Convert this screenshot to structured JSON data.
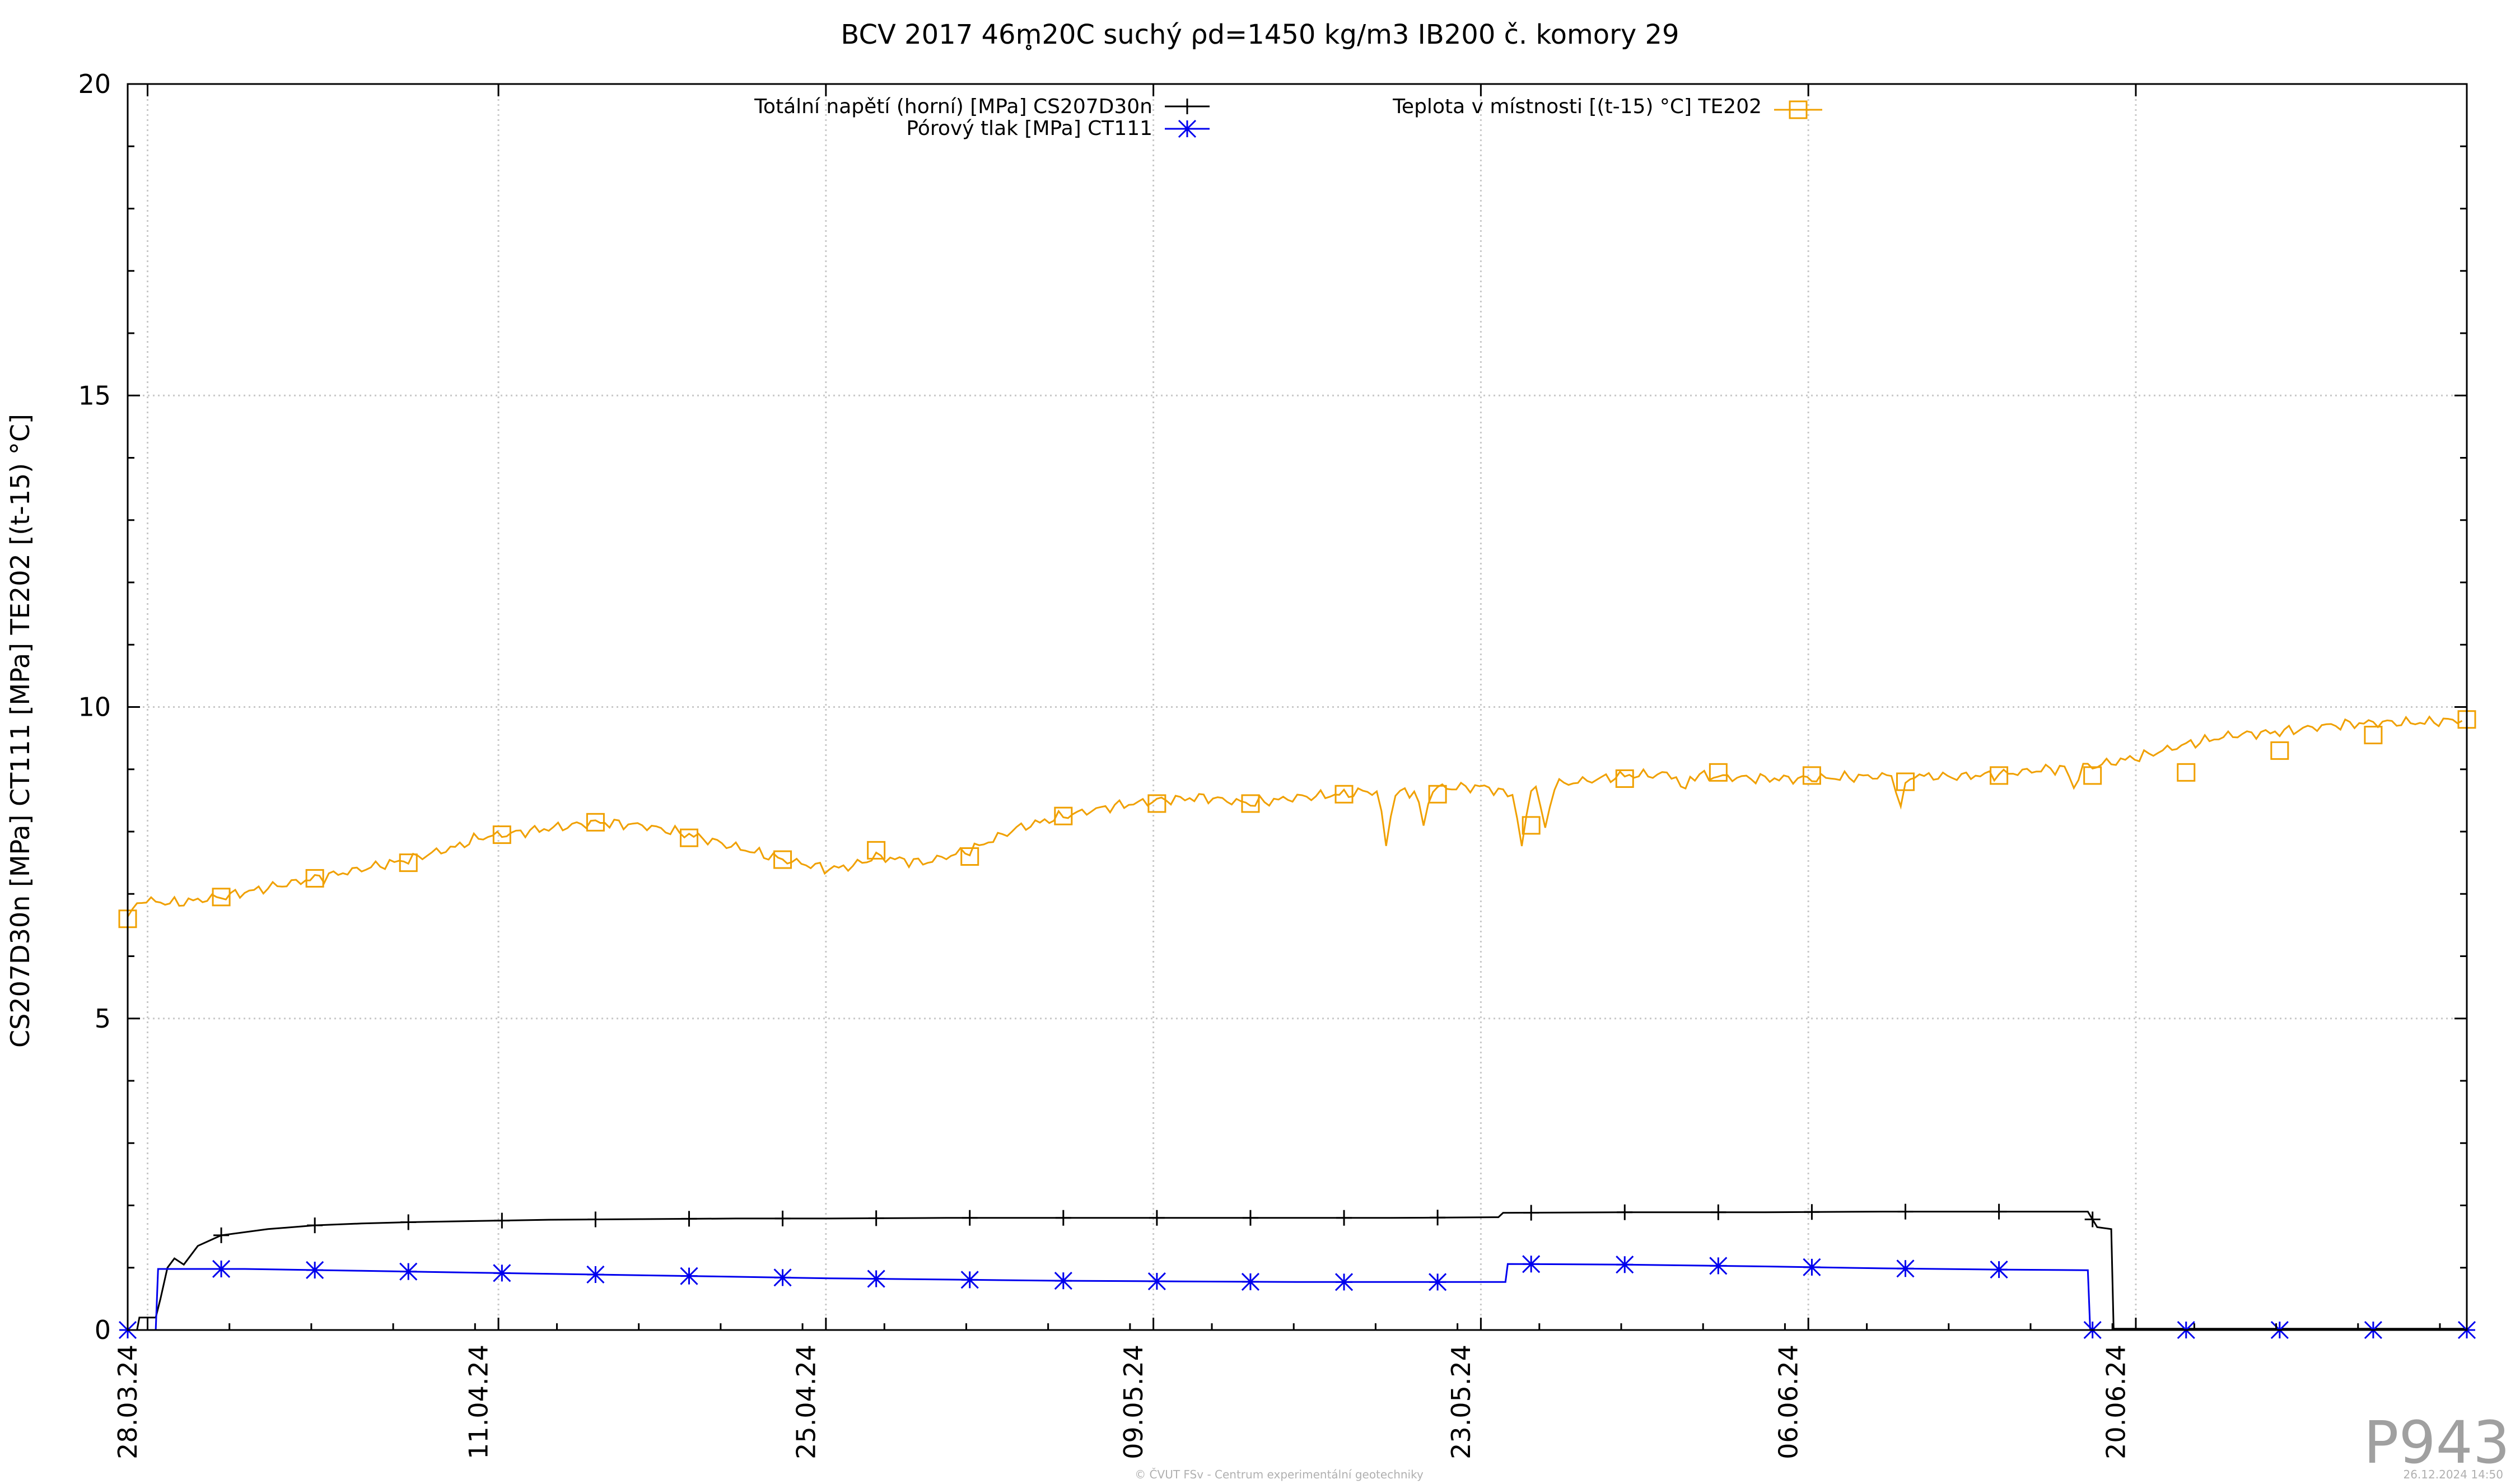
{
  "title": "BCV 2017 46m̥20C suchý ρd=1450 kg/m3 IB200 č. komory 29",
  "ylabel": "CS207D30n [MPa] CT111 [MPa] TE202 [(t-15) °C]",
  "watermark": "P943",
  "footer_left": "© ČVUT FSv - Centrum experimentální geotechniky",
  "footer_right": "26.12.2024 14:50",
  "legend": {
    "s1": "Totální napětí (horní) [MPa] CS207D30n",
    "s2": "Pórový tlak [MPa] CT111",
    "s3": "Teplota v místnosti [(t-15) °C] TE202"
  },
  "colors": {
    "black": "#000000",
    "blue": "#0000ee",
    "orange": "#f0a000"
  },
  "chart_data": {
    "type": "line",
    "x_unit": "days since 28.03.24",
    "xlim": [
      0,
      100
    ],
    "ylim": [
      0,
      20
    ],
    "grid": true,
    "legend_position": "top",
    "y_ticks": [
      0,
      5,
      10,
      15,
      20
    ],
    "x_ticks": [
      {
        "x": 0,
        "label": "28.03.24"
      },
      {
        "x": 15,
        "label": "11.04.24"
      },
      {
        "x": 29,
        "label": "25.04.24"
      },
      {
        "x": 43,
        "label": "09.05.24"
      },
      {
        "x": 57,
        "label": "23.05.24"
      },
      {
        "x": 71,
        "label": "06.06.24"
      },
      {
        "x": 85,
        "label": "20.06.24"
      }
    ],
    "series": [
      {
        "name": "Totální napětí (horní) [MPa] CS207D30n",
        "color": "#000000",
        "marker": "plus",
        "points": [
          [
            0,
            0
          ],
          [
            0.4,
            0
          ],
          [
            0.5,
            0.2
          ],
          [
            1.2,
            0.2
          ],
          [
            1.4,
            0.5
          ],
          [
            1.7,
            1.0
          ],
          [
            2.0,
            1.15
          ],
          [
            2.4,
            1.05
          ],
          [
            3.0,
            1.35
          ],
          [
            4,
            1.52
          ],
          [
            6,
            1.62
          ],
          [
            8,
            1.68
          ],
          [
            10,
            1.71
          ],
          [
            12,
            1.73
          ],
          [
            15,
            1.75
          ],
          [
            18,
            1.77
          ],
          [
            22,
            1.78
          ],
          [
            26,
            1.79
          ],
          [
            30,
            1.79
          ],
          [
            35,
            1.8
          ],
          [
            40,
            1.8
          ],
          [
            45,
            1.8
          ],
          [
            50,
            1.8
          ],
          [
            54,
            1.8
          ],
          [
            58.6,
            1.81
          ],
          [
            58.8,
            1.88
          ],
          [
            64,
            1.89
          ],
          [
            70,
            1.89
          ],
          [
            75,
            1.9
          ],
          [
            80,
            1.9
          ],
          [
            83.8,
            1.9
          ],
          [
            84.2,
            1.65
          ],
          [
            84.8,
            1.62
          ],
          [
            84.9,
            0.02
          ],
          [
            90,
            0.02
          ],
          [
            100,
            0.02
          ]
        ],
        "markers_x": [
          4,
          8,
          12,
          16,
          20,
          24,
          28,
          32,
          36,
          40,
          44,
          48,
          52,
          56,
          60,
          64,
          68,
          72,
          76,
          80,
          84
        ]
      },
      {
        "name": "Pórový tlak [MPa] CT111",
        "color": "#0000ee",
        "marker": "star",
        "points": [
          [
            0,
            0
          ],
          [
            1.2,
            0
          ],
          [
            1.3,
            0.98
          ],
          [
            5,
            0.98
          ],
          [
            10,
            0.95
          ],
          [
            15,
            0.92
          ],
          [
            20,
            0.89
          ],
          [
            25,
            0.86
          ],
          [
            30,
            0.83
          ],
          [
            35,
            0.81
          ],
          [
            40,
            0.79
          ],
          [
            45,
            0.78
          ],
          [
            50,
            0.77
          ],
          [
            58.9,
            0.77
          ],
          [
            59,
            1.06
          ],
          [
            64,
            1.05
          ],
          [
            70,
            1.02
          ],
          [
            75,
            0.99
          ],
          [
            80,
            0.97
          ],
          [
            83.8,
            0.96
          ],
          [
            83.9,
            0
          ],
          [
            90,
            0
          ],
          [
            100,
            0
          ]
        ],
        "markers_x": [
          0,
          4,
          8,
          12,
          16,
          20,
          24,
          28,
          32,
          36,
          40,
          44,
          48,
          52,
          56,
          60,
          64,
          68,
          72,
          76,
          80,
          84,
          88,
          92,
          96,
          100
        ]
      },
      {
        "name": "Teplota v místnosti [(t-15) °C] TE202",
        "color": "#f0a000",
        "marker": "square",
        "points": [
          [
            0,
            6.6
          ],
          [
            0.5,
            6.9
          ],
          [
            2,
            6.85
          ],
          [
            4,
            6.95
          ],
          [
            6,
            7.1
          ],
          [
            8,
            7.25
          ],
          [
            10,
            7.4
          ],
          [
            12,
            7.55
          ],
          [
            14,
            7.75
          ],
          [
            15,
            7.9
          ],
          [
            16,
            7.95
          ],
          [
            18,
            8.05
          ],
          [
            20,
            8.15
          ],
          [
            22,
            8.1
          ],
          [
            24,
            7.95
          ],
          [
            26,
            7.75
          ],
          [
            28,
            7.55
          ],
          [
            30,
            7.4
          ],
          [
            31,
            7.45
          ],
          [
            32,
            7.6
          ],
          [
            34,
            7.5
          ],
          [
            36,
            7.7
          ],
          [
            38,
            8.05
          ],
          [
            40,
            8.25
          ],
          [
            42,
            8.4
          ],
          [
            44,
            8.5
          ],
          [
            46,
            8.55
          ],
          [
            48,
            8.45
          ],
          [
            50,
            8.55
          ],
          [
            52,
            8.6
          ],
          [
            53,
            8.65
          ],
          [
            54,
            8.6
          ],
          [
            56,
            8.7
          ],
          [
            58,
            8.72
          ],
          [
            59,
            8.6
          ],
          [
            60,
            8.7
          ],
          [
            62,
            8.8
          ],
          [
            64,
            8.9
          ],
          [
            66,
            8.92
          ],
          [
            68,
            8.88
          ],
          [
            70,
            8.85
          ],
          [
            72,
            8.85
          ],
          [
            74,
            8.88
          ],
          [
            76,
            8.9
          ],
          [
            78,
            8.88
          ],
          [
            80,
            8.92
          ],
          [
            82,
            9.0
          ],
          [
            84,
            9.05
          ],
          [
            86,
            9.2
          ],
          [
            88,
            9.4
          ],
          [
            90,
            9.55
          ],
          [
            92,
            9.6
          ],
          [
            94,
            9.7
          ],
          [
            96,
            9.75
          ],
          [
            98,
            9.75
          ],
          [
            100,
            9.8
          ]
        ],
        "dips": [
          [
            53.8,
            7.8
          ],
          [
            55.4,
            8.1
          ],
          [
            59.6,
            7.7
          ],
          [
            60.6,
            8.0
          ],
          [
            66.5,
            8.6
          ],
          [
            75.8,
            8.4
          ],
          [
            83.2,
            8.7
          ]
        ],
        "markers": [
          [
            0,
            6.6
          ],
          [
            4,
            6.95
          ],
          [
            8,
            7.25
          ],
          [
            12,
            7.5
          ],
          [
            16,
            7.95
          ],
          [
            20,
            8.15
          ],
          [
            24,
            7.9
          ],
          [
            28,
            7.55
          ],
          [
            32,
            7.7
          ],
          [
            36,
            7.6
          ],
          [
            40,
            8.25
          ],
          [
            44,
            8.45
          ],
          [
            48,
            8.45
          ],
          [
            52,
            8.6
          ],
          [
            56,
            8.6
          ],
          [
            60,
            8.1
          ],
          [
            64,
            8.85
          ],
          [
            68,
            8.95
          ],
          [
            72,
            8.9
          ],
          [
            76,
            8.8
          ],
          [
            80,
            8.9
          ],
          [
            84,
            8.9
          ],
          [
            88,
            8.95
          ],
          [
            92,
            9.3
          ],
          [
            96,
            9.55
          ],
          [
            100,
            9.8
          ]
        ]
      }
    ]
  }
}
